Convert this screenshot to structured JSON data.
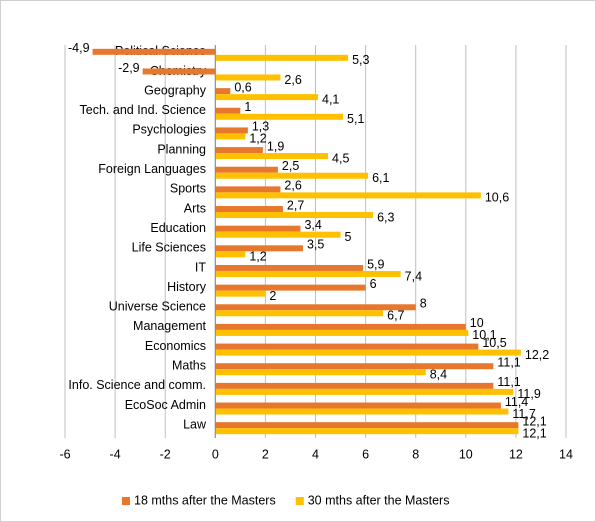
{
  "chart_data": {
    "type": "hbar",
    "categories": [
      "Political Science",
      "Chemistry",
      "Geography",
      "Tech. and Ind. Science",
      "Psychologies",
      "Planning",
      "Foreign Languages",
      "Sports",
      "Arts",
      "Education",
      "Life Sciences",
      "IT",
      "History",
      "Universe Science",
      "Management",
      "Economics",
      "Maths",
      "Info. Science and comm.",
      "EcoSoc Admin",
      "Law"
    ],
    "series": [
      {
        "name": "18 mths after the Masters",
        "color": "#e8772e",
        "values": [
          -4.9,
          -2.9,
          0.6,
          1,
          1.3,
          1.9,
          2.5,
          2.6,
          2.7,
          3.4,
          3.5,
          5.9,
          6,
          8,
          10,
          10.5,
          11.1,
          11.1,
          11.4,
          12.1
        ],
        "value_labels": [
          "-4,9",
          "-2,9",
          "0,6",
          "1",
          "1,3",
          "1,9",
          "2,5",
          "2,6",
          "2,7",
          "3,4",
          "3,5",
          "5,9",
          "6",
          "8",
          "10",
          "10,5",
          "11,1",
          "11,1",
          "11,4",
          "12,1"
        ]
      },
      {
        "name": "30 mths after the Masters",
        "color": "#ffc000",
        "values": [
          5.3,
          2.6,
          4.1,
          5.1,
          1.2,
          4.5,
          6.1,
          10.6,
          6.3,
          5,
          1.2,
          7.4,
          2,
          6.7,
          10.1,
          12.2,
          8.4,
          11.9,
          11.7,
          12.1
        ],
        "value_labels": [
          "5,3",
          "2,6",
          "4,1",
          "5,1",
          "1,2",
          "4,5",
          "6,1",
          "10,6",
          "6,3",
          "5",
          "1,2",
          "7,4",
          "2",
          "6,7",
          "10,1",
          "12,2",
          "8,4",
          "11,9",
          "11,7",
          "12,1"
        ]
      }
    ],
    "xlim": [
      -6,
      14
    ],
    "xticks": [
      -6,
      -4,
      -2,
      0,
      2,
      4,
      6,
      8,
      10,
      12,
      14
    ],
    "grid": true,
    "legend": "bottom"
  }
}
